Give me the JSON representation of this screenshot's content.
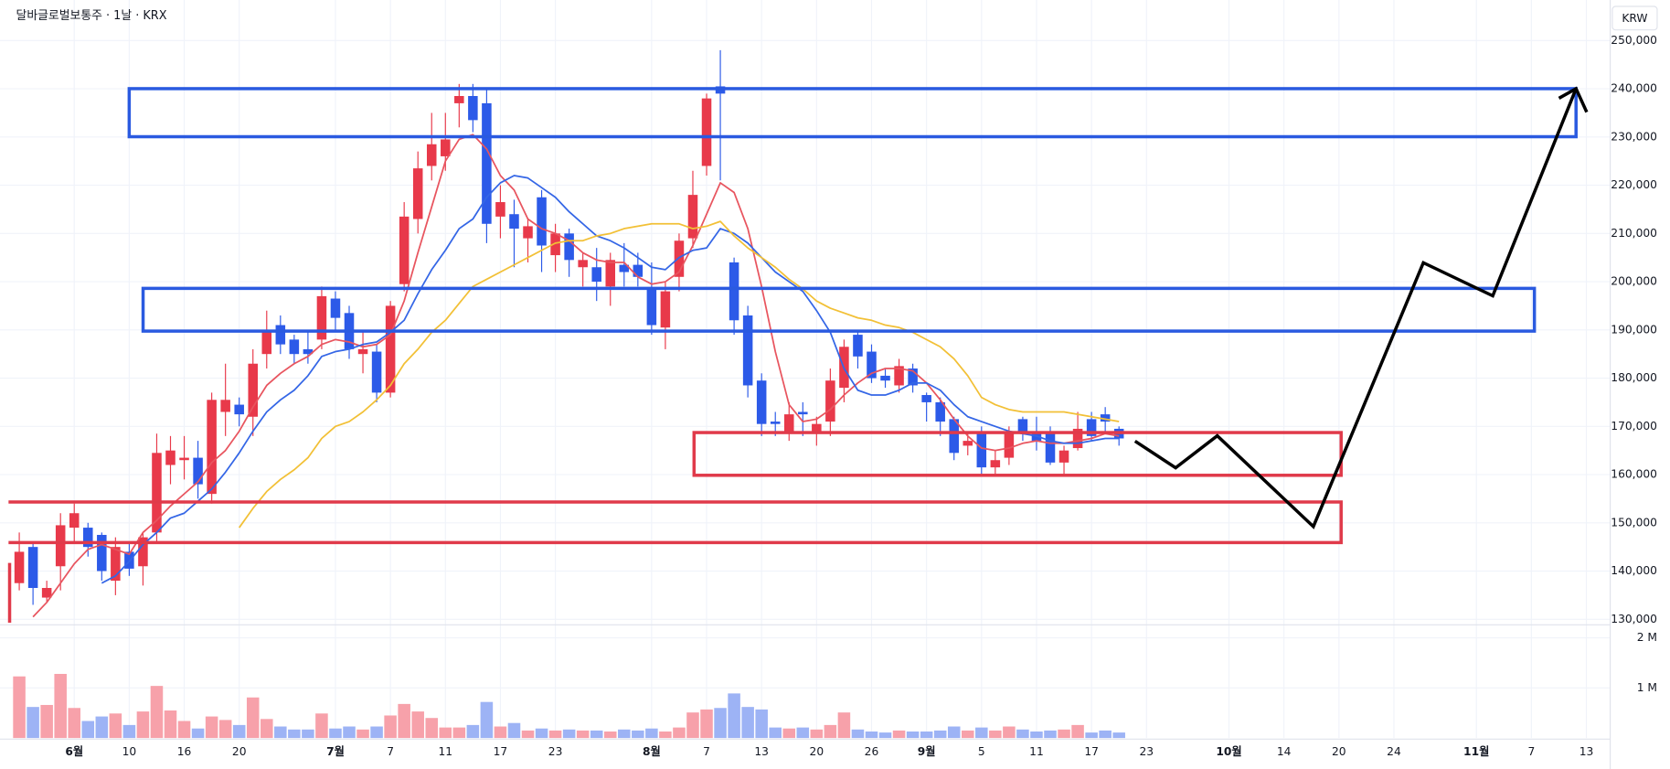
{
  "chart_data": {
    "type": "candlestick",
    "title": "달바글로벌보통주 · 1날 · KRX",
    "currency": "KRW",
    "up_color": "#e8394a",
    "down_color": "#2c5ae8",
    "grid": true,
    "xlim": [
      -0.78,
      115.5
    ],
    "ylim": [
      129300,
      257300
    ],
    "xticks": [
      {
        "value": 4,
        "label": "6월"
      },
      {
        "value": 8,
        "label": "10"
      },
      {
        "value": 12,
        "label": "16"
      },
      {
        "value": 16,
        "label": "20"
      },
      {
        "value": 23,
        "label": "7월"
      },
      {
        "value": 27,
        "label": "7"
      },
      {
        "value": 31,
        "label": "11"
      },
      {
        "value": 35,
        "label": "17"
      },
      {
        "value": 39,
        "label": "23"
      },
      {
        "value": 46,
        "label": "8월"
      },
      {
        "value": 50,
        "label": "7"
      },
      {
        "value": 54,
        "label": "13"
      },
      {
        "value": 58,
        "label": "20"
      },
      {
        "value": 62,
        "label": "26"
      },
      {
        "value": 66,
        "label": "9월"
      },
      {
        "value": 70,
        "label": "5"
      },
      {
        "value": 74,
        "label": "11"
      },
      {
        "value": 78,
        "label": "17"
      },
      {
        "value": 82,
        "label": "23"
      },
      {
        "value": 88,
        "label": "10월"
      },
      {
        "value": 92,
        "label": "14"
      },
      {
        "value": 96,
        "label": "20"
      },
      {
        "value": 100,
        "label": "24"
      },
      {
        "value": 106,
        "label": "11월"
      },
      {
        "value": 110,
        "label": "7"
      },
      {
        "value": 114,
        "label": "13"
      }
    ],
    "yticks": [
      {
        "value": 250000,
        "label": "250,000"
      },
      {
        "value": 240000,
        "label": "240,000"
      },
      {
        "value": 230000,
        "label": "230,000"
      },
      {
        "value": 220000,
        "label": "220,000"
      },
      {
        "value": 210000,
        "label": "210,000"
      },
      {
        "value": 200000,
        "label": "200,000"
      },
      {
        "value": 190000,
        "label": "190,000"
      },
      {
        "value": 180000,
        "label": "180,000"
      },
      {
        "value": 170000,
        "label": "170,000"
      },
      {
        "value": 160000,
        "label": "160,000"
      },
      {
        "value": 150000,
        "label": "150,000"
      },
      {
        "value": 140000,
        "label": "140,000"
      },
      {
        "value": 130000,
        "label": "130,000"
      }
    ],
    "open": [
      137500,
      145000,
      134500,
      141000,
      149000,
      149000,
      147500,
      138000,
      144000,
      141000,
      148000,
      162000,
      163000,
      163500,
      156000,
      173000,
      174500,
      172000,
      185000,
      191000,
      188000,
      186000,
      188000,
      196500,
      193500,
      185000,
      185500,
      177000,
      199500,
      213000,
      224000,
      226000,
      237000,
      238500,
      237000,
      213500,
      214000,
      209000,
      217500,
      205500,
      210000,
      203000,
      203000,
      199000,
      203500,
      203500,
      198500,
      190500,
      201000,
      209000,
      224000,
      240500,
      204000,
      193000,
      179500,
      171000,
      169000,
      173000,
      168500,
      171000,
      178000,
      189000,
      185500,
      180500,
      178500,
      182000,
      176500,
      175000,
      171500,
      166000,
      168500,
      161500,
      163500,
      171500,
      169000,
      168500,
      162500,
      165500,
      171500,
      172500,
      169500
    ],
    "high": [
      148000,
      146000,
      138000,
      152000,
      154000,
      150000,
      148000,
      147000,
      146000,
      148000,
      168500,
      168000,
      168000,
      167000,
      177000,
      183000,
      176000,
      186000,
      194000,
      193000,
      189000,
      190000,
      199000,
      198000,
      195000,
      190000,
      187000,
      196000,
      216500,
      227000,
      235000,
      235000,
      241000,
      241000,
      240000,
      220000,
      217000,
      213000,
      219000,
      212000,
      211000,
      206000,
      207000,
      206000,
      208000,
      206000,
      204000,
      200000,
      210000,
      223000,
      239000,
      248000,
      205000,
      195000,
      181000,
      173000,
      175000,
      175000,
      172000,
      182000,
      188000,
      190000,
      187000,
      182000,
      184000,
      183000,
      177000,
      176000,
      172000,
      169000,
      170000,
      165000,
      170000,
      172000,
      172000,
      170000,
      166000,
      173000,
      173000,
      174000,
      170000
    ],
    "low": [
      136000,
      133000,
      133500,
      136000,
      146000,
      143000,
      138000,
      135000,
      139000,
      137000,
      146000,
      158000,
      159000,
      155000,
      154000,
      168000,
      170000,
      168000,
      182000,
      185000,
      183000,
      183000,
      186000,
      190000,
      184000,
      181000,
      175000,
      176000,
      198000,
      210000,
      221000,
      223000,
      232000,
      231000,
      208000,
      209000,
      203000,
      204000,
      202000,
      202000,
      201000,
      199000,
      196000,
      195000,
      199000,
      199000,
      189000,
      186000,
      198000,
      207000,
      222000,
      221000,
      189000,
      176000,
      168000,
      168000,
      167000,
      168000,
      166000,
      168000,
      175000,
      182000,
      179000,
      178000,
      177000,
      177000,
      171000,
      168000,
      163000,
      164000,
      160000,
      160000,
      162000,
      167000,
      165000,
      162000,
      160000,
      165000,
      167000,
      169000,
      166000
    ],
    "close": [
      144000,
      136500,
      136500,
      149500,
      152000,
      145000,
      140000,
      145000,
      140500,
      147000,
      164500,
      165000,
      163500,
      158000,
      175500,
      175500,
      172500,
      183000,
      190000,
      187000,
      185000,
      185000,
      197000,
      192500,
      186000,
      186000,
      177000,
      195000,
      213500,
      223500,
      228500,
      229500,
      238500,
      233500,
      212000,
      216500,
      211000,
      211500,
      207500,
      210000,
      204500,
      204500,
      200000,
      204500,
      202000,
      201000,
      191000,
      198000,
      208500,
      218000,
      238000,
      239000,
      192000,
      178500,
      170500,
      170500,
      172500,
      172500,
      170500,
      179500,
      186500,
      184500,
      180000,
      179500,
      182500,
      178500,
      175000,
      171000,
      164500,
      167000,
      161500,
      163000,
      169000,
      169000,
      167000,
      162500,
      165000,
      169500,
      168000,
      171000,
      167500
    ],
    "moving_averages": [
      {
        "color": "#e8555f",
        "values": [
          null,
          130500,
          133500,
          137500,
          141500,
          144500,
          145500,
          144500,
          143500,
          148000,
          150500,
          153500,
          156000,
          158500,
          162500,
          165000,
          169000,
          174000,
          178500,
          181000,
          183000,
          184500,
          187000,
          188000,
          187500,
          186500,
          187000,
          189000,
          196000,
          206000,
          215500,
          225000,
          229500,
          230500,
          227500,
          222000,
          219000,
          213000,
          211000,
          210000,
          208500,
          206000,
          204500,
          204000,
          204000,
          201000,
          199500,
          200000,
          202000,
          207500,
          214000,
          220500,
          218500,
          211000,
          199000,
          185500,
          174500,
          171000,
          171500,
          173500,
          176500,
          179000,
          181000,
          182000,
          182000,
          181500,
          179000,
          175500,
          171500,
          168000,
          165500,
          165000,
          165500,
          166500,
          167000,
          166500,
          166500,
          167000,
          167500,
          168500,
          168000
        ]
      },
      {
        "color": "#3466e6",
        "values": [
          null,
          null,
          null,
          null,
          null,
          null,
          137500,
          139000,
          142000,
          145500,
          148000,
          151000,
          152000,
          154500,
          157000,
          160500,
          164500,
          169000,
          173000,
          175500,
          177500,
          180500,
          184500,
          185500,
          186000,
          187000,
          187500,
          189500,
          192000,
          197500,
          202500,
          206500,
          211000,
          213000,
          217500,
          220500,
          222000,
          221500,
          219500,
          217500,
          214500,
          212000,
          209500,
          208500,
          207000,
          205000,
          203000,
          202500,
          205000,
          206500,
          207000,
          211000,
          210000,
          208000,
          205000,
          202000,
          200000,
          198000,
          194000,
          189500,
          182000,
          177500,
          176500,
          176500,
          177500,
          179000,
          179000,
          177500,
          174500,
          172000,
          171000,
          170000,
          169000,
          168500,
          168000,
          167000,
          166500,
          166500,
          167000,
          167500,
          167500
        ]
      },
      {
        "color": "#f2c036",
        "values": [
          null,
          null,
          null,
          null,
          null,
          null,
          null,
          null,
          null,
          null,
          null,
          null,
          null,
          null,
          null,
          null,
          149000,
          153000,
          156500,
          159000,
          161000,
          163500,
          167500,
          170000,
          171000,
          173000,
          175500,
          178500,
          183000,
          186000,
          189500,
          192000,
          195500,
          199000,
          200500,
          202000,
          203500,
          205000,
          206500,
          208000,
          208500,
          208500,
          209500,
          210000,
          211000,
          211500,
          212000,
          212000,
          212000,
          211000,
          211500,
          212500,
          209500,
          207000,
          205000,
          203000,
          200500,
          198500,
          196000,
          194500,
          193500,
          192500,
          192000,
          191000,
          190500,
          189500,
          188000,
          186500,
          184000,
          180500,
          176000,
          174500,
          173500,
          173000,
          173000,
          173000,
          173000,
          172500,
          172000,
          171500,
          171000
        ]
      }
    ],
    "volume": {
      "up_color": "#f7a1aa",
      "down_color": "#9db3f5",
      "ylim": [
        0,
        2260000
      ],
      "yticks": [
        {
          "value": 2000000,
          "label": "2 M"
        },
        {
          "value": 1000000,
          "label": "1 M"
        }
      ],
      "values": [
        1230000,
        620000,
        660000,
        1280000,
        600000,
        340000,
        430000,
        490000,
        260000,
        530000,
        1040000,
        550000,
        340000,
        190000,
        430000,
        360000,
        260000,
        810000,
        380000,
        230000,
        170000,
        170000,
        490000,
        190000,
        230000,
        170000,
        230000,
        450000,
        680000,
        530000,
        400000,
        210000,
        210000,
        260000,
        720000,
        230000,
        300000,
        150000,
        190000,
        150000,
        170000,
        150000,
        150000,
        130000,
        170000,
        150000,
        190000,
        130000,
        210000,
        510000,
        570000,
        600000,
        890000,
        620000,
        570000,
        210000,
        190000,
        210000,
        170000,
        260000,
        510000,
        170000,
        130000,
        110000,
        150000,
        130000,
        130000,
        150000,
        230000,
        150000,
        210000,
        150000,
        230000,
        170000,
        130000,
        150000,
        170000,
        260000,
        110000,
        150000,
        110000
      ]
    }
  }
}
